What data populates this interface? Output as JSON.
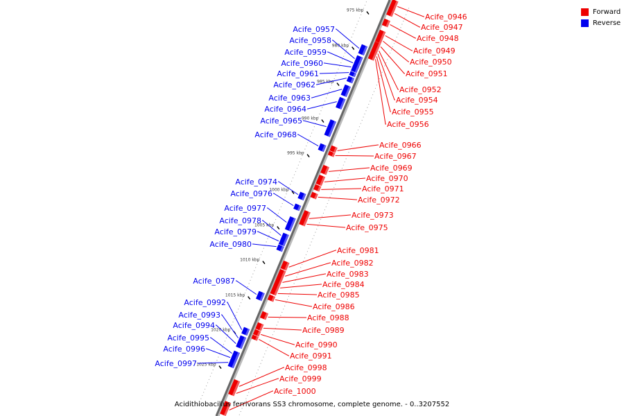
{
  "legend": {
    "forward_label": "Forward",
    "reverse_label": "Reverse",
    "forward_color": "#ee0000",
    "reverse_color": "#0000ee"
  },
  "caption": "Acidithiobacillus ferrivorans SS3 chromosome, complete genome. - 0..3207552",
  "ticks": [
    "975 kbp",
    "980 kbp",
    "985 kbp",
    "990 kbp",
    "995 kbp",
    "1000 kbp",
    "1005 kbp",
    "1010 kbp",
    "1015 kbp",
    "1020 kbp",
    "1025 kbp"
  ],
  "forward_genes": [
    "Acife_0946",
    "Acife_0947",
    "Acife_0948",
    "Acife_0949",
    "Acife_0950",
    "Acife_0951",
    "Acife_0952",
    "Acife_0954",
    "Acife_0955",
    "Acife_0956",
    "Acife_0966",
    "Acife_0967",
    "Acife_0969",
    "Acife_0970",
    "Acife_0971",
    "Acife_0972",
    "Acife_0973",
    "Acife_0975",
    "Acife_0981",
    "Acife_0982",
    "Acife_0983",
    "Acife_0984",
    "Acife_0985",
    "Acife_0986",
    "Acife_0988",
    "Acife_0989",
    "Acife_0990",
    "Acife_0991",
    "Acife_0998",
    "Acife_0999",
    "Acife_1000"
  ],
  "reverse_genes": [
    "Acife_0957",
    "Acife_0958",
    "Acife_0959",
    "Acife_0960",
    "Acife_0961",
    "Acife_0962",
    "Acife_0963",
    "Acife_0964",
    "Acife_0965",
    "Acife_0968",
    "Acife_0974",
    "Acife_0976",
    "Acife_0977",
    "Acife_0978",
    "Acife_0979",
    "Acife_0980",
    "Acife_0987",
    "Acife_0992",
    "Acife_0993",
    "Acife_0994",
    "Acife_0995",
    "Acife_0996",
    "Acife_0997"
  ]
}
